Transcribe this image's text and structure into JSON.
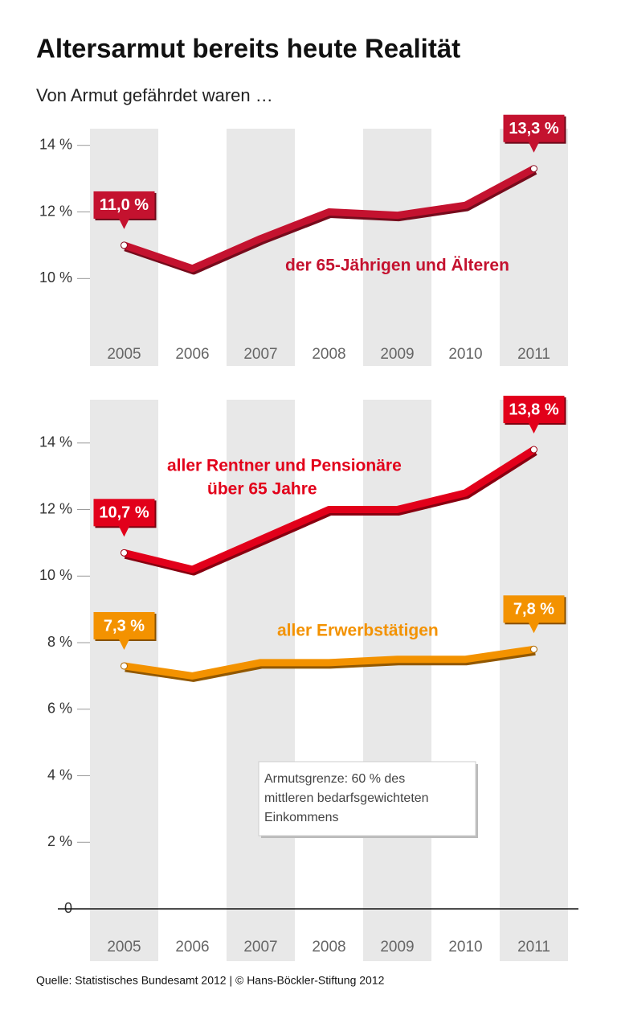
{
  "title": "Altersarmut bereits heute Realität",
  "subtitle": "Von Armut gefährdet waren …",
  "source": "Quelle: Statistisches Bundesamt 2012 | © Hans-Böckler-Stiftung 2012",
  "chart_data": [
    {
      "type": "line",
      "categories": [
        "2005",
        "2006",
        "2007",
        "2008",
        "2009",
        "2010",
        "2011"
      ],
      "ylim": [
        8.1,
        14.5
      ],
      "yticks": [
        {
          "value": 10,
          "label": "10 %"
        },
        {
          "value": 12,
          "label": "12 %"
        },
        {
          "value": 14,
          "label": "14 %"
        }
      ],
      "series": [
        {
          "name": "der 65-Jährigen und Älteren",
          "color": "#c4122f",
          "values": [
            11.0,
            10.3,
            11.2,
            12.0,
            11.9,
            12.2,
            13.3
          ],
          "value_labels": [
            "11,0 %",
            null,
            null,
            null,
            null,
            null,
            "13,3 %"
          ]
        }
      ]
    },
    {
      "type": "line",
      "categories": [
        "2005",
        "2006",
        "2007",
        "2008",
        "2009",
        "2010",
        "2011"
      ],
      "ylim": [
        0,
        15.3
      ],
      "yticks": [
        0,
        {
          "value": 2,
          "label": "2 %"
        },
        {
          "value": 4,
          "label": "4 %"
        },
        {
          "value": 6,
          "label": "6 %"
        },
        {
          "value": 8,
          "label": "8 %"
        },
        {
          "value": 10,
          "label": "10 %"
        },
        {
          "value": 12,
          "label": "12 %"
        },
        {
          "value": 14,
          "label": "14 %"
        }
      ],
      "series": [
        {
          "name": [
            "aller Rentner und Pensionäre",
            "über 65 Jahre"
          ],
          "color": "#e2001a",
          "values": [
            10.7,
            10.2,
            11.1,
            12.0,
            12.0,
            12.5,
            13.8
          ],
          "value_labels": [
            "10,7 %",
            null,
            null,
            null,
            null,
            null,
            "13,8 %"
          ]
        },
        {
          "name": "aller Erwerbstätigen",
          "color": "#f39200",
          "values": [
            7.3,
            7.0,
            7.4,
            7.4,
            7.5,
            7.5,
            7.8
          ],
          "value_labels": [
            "7,3 %",
            null,
            null,
            null,
            null,
            null,
            "7,8 %"
          ]
        }
      ],
      "annotation": [
        "Armutsgrenze: 60 % des",
        "mittleren bedarfsgewichteten",
        "Einkommens"
      ]
    }
  ]
}
